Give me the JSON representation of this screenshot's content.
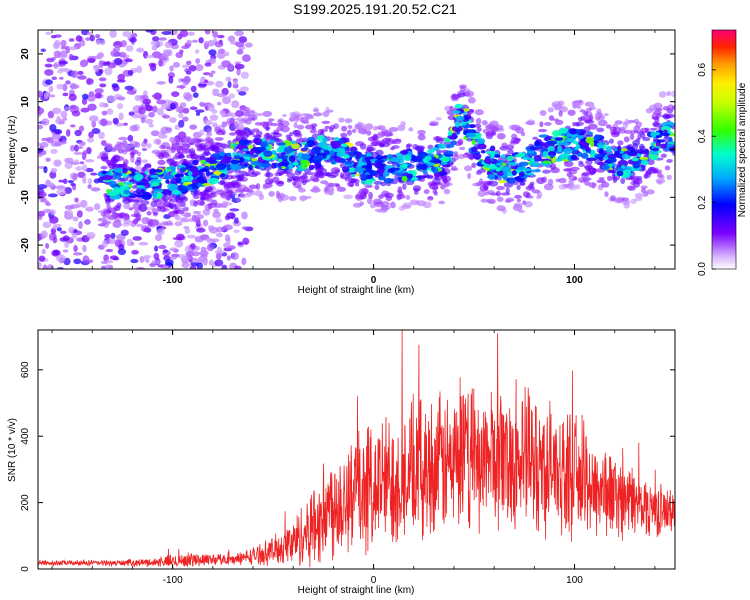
{
  "title": "S199.2025.191.20.52.C21",
  "chart_data": [
    {
      "type": "heatmap",
      "xlabel": "Height of straight line (km)",
      "ylabel": "Frequency (Hz)",
      "xlim": [
        -167,
        150
      ],
      "ylim": [
        -25,
        25
      ],
      "xticks": [
        -100,
        0,
        100
      ],
      "yticks": [
        -20,
        -10,
        0,
        10,
        20
      ],
      "colorbar": {
        "label": "Normalized spectral amplitude",
        "range": [
          0,
          0.72
        ],
        "ticks": [
          "0.0",
          "0.2",
          "0.4",
          "0.6"
        ]
      },
      "ridge": {
        "x": [
          -130,
          -118,
          -105,
          -95,
          -85,
          -75,
          -65,
          -55,
          -45,
          -35,
          -25,
          -15,
          -5,
          5,
          15,
          25,
          35,
          40,
          43,
          45,
          48,
          55,
          65,
          75,
          85,
          95,
          105,
          115,
          125,
          135,
          145
        ],
        "y": [
          -7,
          -7.5,
          -7,
          -6.5,
          -5,
          -3,
          -1,
          -1,
          -1.5,
          -1.5,
          0,
          -1,
          -4,
          -4,
          -3.5,
          -3,
          -2,
          4,
          7,
          6,
          3,
          -2,
          -4,
          -4,
          0,
          1,
          1,
          -1,
          -3,
          -1,
          3
        ]
      }
    },
    {
      "type": "line",
      "xlabel": "Height of straight line (km)",
      "ylabel": "SNR (10 * v/v)",
      "xlim": [
        -167,
        150
      ],
      "ylim": [
        0,
        720
      ],
      "xticks": [
        -100,
        0,
        100
      ],
      "yticks": [
        0,
        200,
        400,
        600
      ],
      "color": "#ee2222",
      "envelope": {
        "x": [
          -167,
          -130,
          -110,
          -100,
          -90,
          -80,
          -70,
          -60,
          -50,
          -40,
          -30,
          -20,
          -10,
          0,
          10,
          20,
          30,
          40,
          50,
          60,
          70,
          80,
          90,
          100,
          110,
          120,
          130,
          140,
          150
        ],
        "mean": [
          18,
          18,
          20,
          24,
          28,
          30,
          28,
          40,
          55,
          80,
          130,
          200,
          230,
          250,
          270,
          290,
          310,
          320,
          330,
          340,
          330,
          320,
          300,
          280,
          250,
          220,
          200,
          180,
          170
        ],
        "amplitude": [
          8,
          8,
          12,
          20,
          20,
          18,
          15,
          25,
          40,
          70,
          120,
          160,
          180,
          190,
          200,
          200,
          200,
          210,
          200,
          200,
          200,
          210,
          180,
          170,
          150,
          120,
          100,
          80,
          60
        ]
      }
    }
  ]
}
